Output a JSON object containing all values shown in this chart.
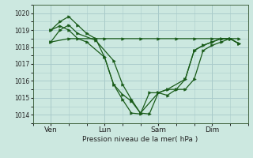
{
  "bg_color": "#cce8e0",
  "grid_color": "#aacccc",
  "line_color": "#1a5c1a",
  "marker_color": "#1a5c1a",
  "xlabel": "Pression niveau de la mer( hPa )",
  "ylim": [
    1013.5,
    1020.5
  ],
  "yticks": [
    1014,
    1015,
    1016,
    1017,
    1018,
    1019,
    1020
  ],
  "xtick_labels": [
    "Ven",
    "Lun",
    "Sam",
    "Dim"
  ],
  "xtick_positions": [
    1,
    4,
    7,
    10
  ],
  "vline_positions": [
    1,
    4,
    7,
    10
  ],
  "xlim": [
    0,
    12
  ],
  "series1_x": [
    1,
    1.5,
    2.0,
    2.5,
    3.0,
    4.0,
    4.5,
    5.0,
    5.5,
    6.0,
    6.5,
    7.0,
    7.5,
    8.0,
    8.5,
    9.0,
    9.5,
    10.0,
    10.5,
    11.0,
    11.5
  ],
  "series1_y": [
    1019.0,
    1019.25,
    1019.0,
    1018.5,
    1018.3,
    1017.4,
    1015.8,
    1015.2,
    1014.8,
    1014.1,
    1014.05,
    1015.3,
    1015.15,
    1015.5,
    1015.5,
    1016.1,
    1017.8,
    1018.1,
    1018.3,
    1018.5,
    1018.5
  ],
  "series2_x": [
    1,
    2.0,
    3.5,
    4.0,
    5.0,
    6.0,
    7.0,
    8.0,
    9.0,
    10.0,
    11.0,
    11.5
  ],
  "series2_y": [
    1018.3,
    1018.5,
    1018.5,
    1018.5,
    1018.5,
    1018.5,
    1018.5,
    1018.5,
    1018.5,
    1018.5,
    1018.5,
    1018.2
  ],
  "series3_x": [
    1,
    1.5,
    2.0,
    2.5,
    3.0,
    3.5,
    4.0,
    4.5,
    5.0,
    5.5,
    6.0,
    6.5,
    7.0,
    7.5,
    8.0,
    8.5,
    9.0,
    9.5,
    10.0,
    10.5,
    11.0,
    11.5
  ],
  "series3_y": [
    1019.0,
    1019.5,
    1019.8,
    1019.3,
    1018.8,
    1018.5,
    1017.4,
    1015.8,
    1014.9,
    1014.1,
    1014.05,
    1015.3,
    1015.3,
    1015.5,
    1015.5,
    1016.1,
    1017.8,
    1018.1,
    1018.3,
    1018.5,
    1018.5,
    1018.2
  ],
  "series4_x": [
    1,
    1.5,
    2.0,
    2.5,
    3.5,
    4.5,
    5.0,
    5.5,
    6.0,
    7.0,
    7.5,
    8.5,
    9.0,
    9.5,
    10.0,
    10.5,
    11.0,
    11.5
  ],
  "series4_y": [
    1018.3,
    1019.0,
    1019.3,
    1018.8,
    1018.4,
    1017.2,
    1015.8,
    1014.9,
    1014.1,
    1015.3,
    1015.5,
    1016.1,
    1017.8,
    1018.1,
    1018.3,
    1018.5,
    1018.5,
    1018.2
  ]
}
